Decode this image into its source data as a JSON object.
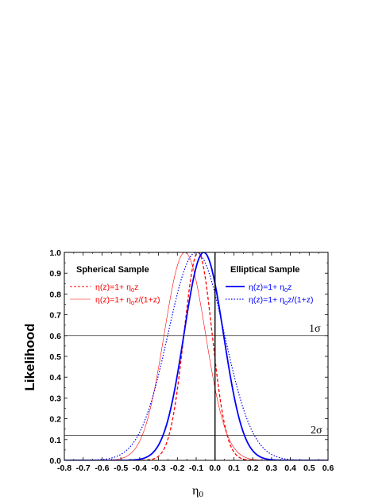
{
  "chart_data": {
    "type": "line",
    "xlabel": "η0",
    "ylabel": "Likelihood",
    "xlim": [
      -0.8,
      0.6
    ],
    "ylim": [
      0.0,
      1.0
    ],
    "x_ticks": [
      "-0.8",
      "-0.7",
      "-0.6",
      "-0.5",
      "-0.4",
      "-0.3",
      "-0.2",
      "-0.1",
      "0.0",
      "0.1",
      "0.2",
      "0.3",
      "0.4",
      "0.5",
      "0.6"
    ],
    "y_ticks": [
      "0.0",
      "0.1",
      "0.2",
      "0.3",
      "0.4",
      "0.5",
      "0.6",
      "0.7",
      "0.8",
      "0.9",
      "1.0"
    ],
    "grid": false,
    "reference_lines": {
      "vertical_x": 0.0,
      "horizontal": [
        {
          "y": 0.6,
          "label": "1σ"
        },
        {
          "y": 0.12,
          "label": "2σ"
        }
      ]
    },
    "legend_groups": [
      {
        "title": "Spherical Sample",
        "position": "top-left",
        "color": "#ff0000"
      },
      {
        "title": "Elliptical Sample",
        "position": "top-right",
        "color": "#0000ff"
      }
    ],
    "series": [
      {
        "name": "η(z)=1+ η0z",
        "group": "Spherical Sample",
        "color": "#ff0000",
        "style": "dashed",
        "width": 1.3,
        "peak": -0.09,
        "sigma": 0.075
      },
      {
        "name": "η(z)=1+ η0z/(1+z)",
        "group": "Spherical Sample",
        "color": "#ff0000",
        "style": "solid",
        "width": 0.6,
        "peak": -0.16,
        "sigma": 0.11
      },
      {
        "name": "η(z)=1+ η0z",
        "group": "Elliptical Sample",
        "color": "#0000ff",
        "style": "solid",
        "width": 1.8,
        "peak": -0.06,
        "sigma": 0.105
      },
      {
        "name": "η(z)=1+ η0z/(1+z)",
        "group": "Elliptical Sample",
        "color": "#0000ff",
        "style": "dotted",
        "width": 1.2,
        "peak": -0.1,
        "sigma": 0.15
      }
    ]
  }
}
